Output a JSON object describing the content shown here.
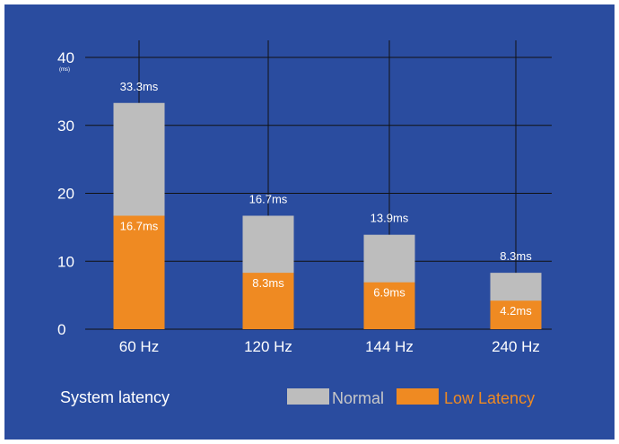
{
  "chart_data": {
    "type": "bar",
    "stacked": false,
    "overlapping": true,
    "categories": [
      "60 Hz",
      "120 Hz",
      "144 Hz",
      "240 Hz"
    ],
    "series": [
      {
        "name": "Normal",
        "values": [
          33.3,
          16.7,
          13.9,
          8.3
        ],
        "labels": [
          "33.3ms",
          "16.7ms",
          "13.9ms",
          "8.3ms"
        ],
        "color": "#bdbdbd",
        "label_color": "#ffffff"
      },
      {
        "name": "Low Latency",
        "values": [
          16.7,
          8.3,
          6.9,
          4.2
        ],
        "labels": [
          "16.7ms",
          "8.3ms",
          "6.9ms",
          "4.2ms"
        ],
        "color": "#ef8a22",
        "label_color": "#ffffff"
      }
    ],
    "yticks": [
      "0",
      "10",
      "20",
      "30",
      "40"
    ],
    "yunit": "(ms)",
    "ylim": [
      0,
      40
    ],
    "grid": true,
    "title": "System latency",
    "legend_position": "bottom-right",
    "background_color": "#2a4c9f",
    "grid_color": "#111111",
    "legend_low_latency_text_color": "#ef8a22",
    "legend_normal_text_color": "#c8c8c8"
  }
}
